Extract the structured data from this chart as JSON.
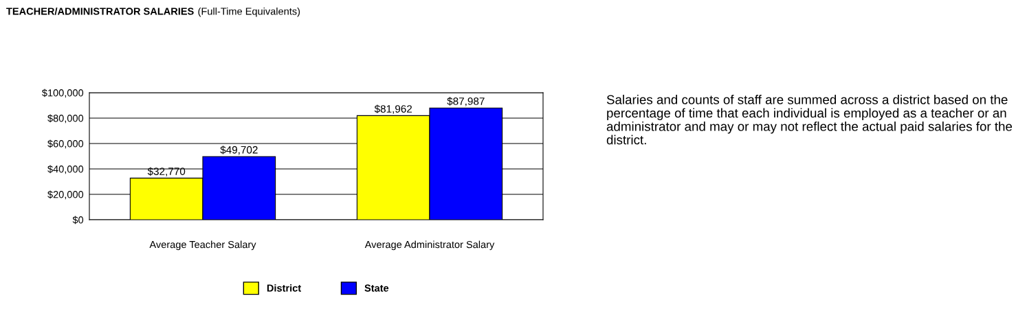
{
  "chart_data": {
    "type": "bar",
    "title": "TEACHER/ADMINISTRATOR SALARIES",
    "subtitle": "(Full-Time Equivalents)",
    "categories": [
      "Average Teacher Salary",
      "Average Administrator Salary"
    ],
    "series": [
      {
        "name": "District",
        "color": "#ffff00",
        "values": [
          32770,
          81962
        ],
        "value_labels": [
          "$32,770",
          "$81,962"
        ]
      },
      {
        "name": "State",
        "color": "#0000ff",
        "values": [
          49702,
          87987
        ],
        "value_labels": [
          "$49,702",
          "$87,987"
        ]
      }
    ],
    "ylim": [
      0,
      100000
    ],
    "yticks": [
      {
        "value": 0,
        "label": "$0"
      },
      {
        "value": 20000,
        "label": "$20,000"
      },
      {
        "value": 40000,
        "label": "$40,000"
      },
      {
        "value": 60000,
        "label": "$60,000"
      },
      {
        "value": 80000,
        "label": "$80,000"
      },
      {
        "value": 100000,
        "label": "$100,000"
      }
    ],
    "grid": "y",
    "legend": "bottom",
    "annotations": [
      "Salaries and counts of staff are summed across a district based on the percentage of time that each individual is employed as a teacher or an administrator and may or may not reflect the actual paid salaries for the district."
    ]
  }
}
